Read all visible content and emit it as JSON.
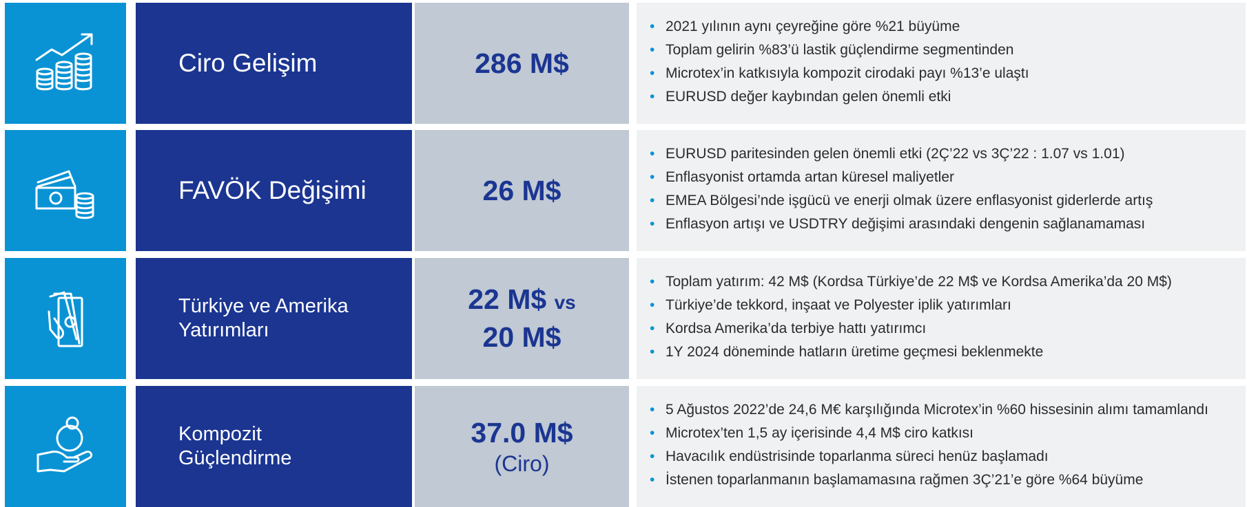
{
  "rows": [
    {
      "title": [
        "Ciro Gelişim"
      ],
      "value": "286 M$",
      "bullets": [
        "2021 yılının aynı çeyreğine göre %21 büyüme",
        "Toplam gelirin %83’ü lastik güçlendirme segmentinden",
        "Microtex’in katkısıyla kompozit cirodaki payı %13’e ulaştı",
        "EURUSD değer kaybından gelen önemli etki"
      ]
    },
    {
      "title": [
        "FAVÖK Değişimi"
      ],
      "value": "26 M$",
      "bullets": [
        "EURUSD paritesinden gelen önemli etki (2Ç’22 vs 3Ç’22 : 1.07 vs 1.01)",
        "Enflasyonist ortamda artan küresel maliyetler",
        "EMEA Bölgesi’nde işgücü ve enerji olmak üzere enflasyonist giderlerde artış",
        "Enflasyon artışı ve USDTRY değişimi arasındaki dengenin sağlanamaması"
      ]
    },
    {
      "title": [
        "Türkiye ve Amerika",
        "Yatırımları"
      ],
      "value": "22 M$",
      "value_suffix": "vs",
      "value2": "20 M$",
      "bullets": [
        "Toplam yatırım: 42 M$ (Kordsa Türkiye’de 22 M$ ve Kordsa Amerika’da 20 M$)",
        "Türkiye’de tekkord, inşaat ve Polyester iplik yatırımları",
        "Kordsa Amerika’da terbiye hattı yatırımcı",
        "1Y 2024 döneminde hatların üretime geçmesi beklenmekte"
      ]
    },
    {
      "title": [
        "Kompozit",
        "Güçlendirme"
      ],
      "value": "37.0 M$",
      "note": "(Ciro)",
      "bullets": [
        "5 Ağustos 2022’de 24,6 M€ karşılığında Microtex’in %60 hissesinin alımı tamamlandı",
        "Microtex’ten 1,5 ay içerisinde 4,4 M$ ciro katkısı",
        "Havacılık endüstrisinde toparlanma süreci henüz başlamadı",
        "İstenen toparlanmanın başlamamasına rağmen 3Ç’21’e göre %64 büyüme"
      ]
    }
  ]
}
